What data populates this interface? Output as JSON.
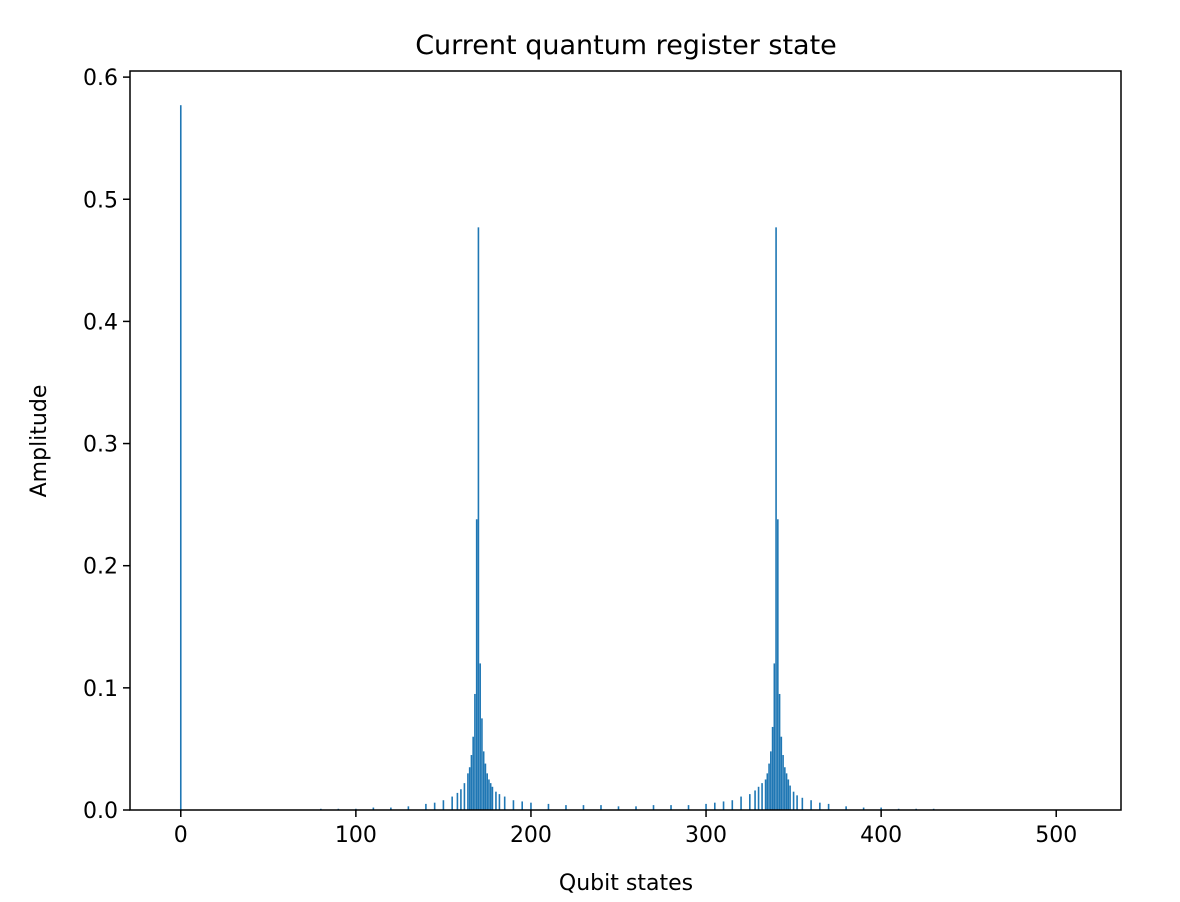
{
  "chart_data": {
    "type": "bar",
    "title": "Current quantum register state",
    "xlabel": "Qubit states",
    "ylabel": "Amplitude",
    "xlim": [
      -29,
      537
    ],
    "ylim": [
      0,
      0.605
    ],
    "xticks": [
      0,
      100,
      200,
      300,
      400,
      500
    ],
    "yticks": [
      0.0,
      0.1,
      0.2,
      0.3,
      0.4,
      0.5,
      0.6
    ],
    "xtick_labels": [
      "0",
      "100",
      "200",
      "300",
      "400",
      "500"
    ],
    "ytick_labels": [
      "0.0",
      "0.1",
      "0.2",
      "0.3",
      "0.4",
      "0.5",
      "0.6"
    ],
    "bar_color": "#1f77b4",
    "grid": false,
    "legend": "none",
    "series": [
      {
        "x": [
          0,
          80,
          90,
          100,
          110,
          120,
          130,
          140,
          145,
          150,
          155,
          158,
          160,
          162,
          164,
          165,
          166,
          167,
          168,
          169,
          170,
          171,
          172,
          173,
          174,
          175,
          176,
          177,
          178,
          180,
          182,
          185,
          190,
          195,
          200,
          210,
          220,
          230,
          240,
          250,
          260,
          270,
          280,
          290,
          300,
          305,
          310,
          315,
          320,
          325,
          328,
          330,
          332,
          334,
          335,
          336,
          337,
          338,
          339,
          340,
          341,
          342,
          343,
          344,
          345,
          346,
          347,
          348,
          350,
          352,
          355,
          360,
          365,
          370,
          380,
          390,
          400,
          410,
          420,
          430
        ],
        "values": [
          0.577,
          0.001,
          0.001,
          0.001,
          0.002,
          0.002,
          0.003,
          0.005,
          0.006,
          0.008,
          0.011,
          0.014,
          0.017,
          0.022,
          0.03,
          0.035,
          0.045,
          0.06,
          0.095,
          0.238,
          0.477,
          0.12,
          0.075,
          0.048,
          0.038,
          0.03,
          0.025,
          0.022,
          0.019,
          0.015,
          0.013,
          0.011,
          0.008,
          0.007,
          0.006,
          0.005,
          0.004,
          0.004,
          0.004,
          0.003,
          0.003,
          0.004,
          0.004,
          0.004,
          0.005,
          0.006,
          0.007,
          0.008,
          0.011,
          0.013,
          0.016,
          0.019,
          0.022,
          0.025,
          0.03,
          0.038,
          0.048,
          0.068,
          0.12,
          0.477,
          0.238,
          0.095,
          0.06,
          0.045,
          0.035,
          0.03,
          0.025,
          0.02,
          0.015,
          0.012,
          0.01,
          0.008,
          0.006,
          0.005,
          0.003,
          0.002,
          0.002,
          0.001,
          0.001,
          0.001
        ]
      }
    ]
  }
}
